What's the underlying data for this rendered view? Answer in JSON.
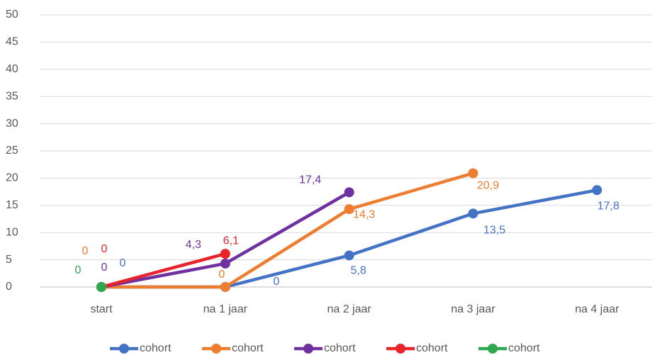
{
  "chart_data": {
    "type": "line",
    "categories": [
      "start",
      "na 1 jaar",
      "na 2 jaar",
      "na 3 jaar",
      "na 4 jaar"
    ],
    "series": [
      {
        "name": "cohort",
        "color": "#4472c4",
        "values": [
          0,
          0,
          5.8,
          13.5,
          17.8
        ],
        "value_labels": [
          "0",
          "0",
          "5,8",
          "13,5",
          "17,8"
        ]
      },
      {
        "name": "cohort",
        "color": "#ed7d31",
        "values": [
          0,
          0,
          14.3,
          20.9,
          null
        ],
        "value_labels": [
          "0",
          "0",
          "14,3",
          "20,9",
          null
        ]
      },
      {
        "name": "cohort",
        "color": "#7030a0",
        "values": [
          0,
          4.3,
          17.4,
          null,
          null
        ],
        "value_labels": [
          "0",
          "4,3",
          "17,4",
          null,
          null
        ]
      },
      {
        "name": "cohort",
        "color": "#e8232b",
        "values": [
          0,
          6.1,
          null,
          null,
          null
        ],
        "value_labels": [
          "0",
          "6,1",
          null,
          null,
          null
        ]
      },
      {
        "name": "cohort",
        "color": "#2ea84f",
        "values": [
          0,
          null,
          null,
          null,
          null
        ],
        "value_labels": [
          "0",
          null,
          null,
          null,
          null
        ]
      }
    ],
    "ylim": [
      0,
      50
    ],
    "yticks": [
      0,
      5,
      10,
      15,
      20,
      25,
      30,
      35,
      40,
      45,
      50
    ],
    "grid": true,
    "legend": "bottom"
  }
}
